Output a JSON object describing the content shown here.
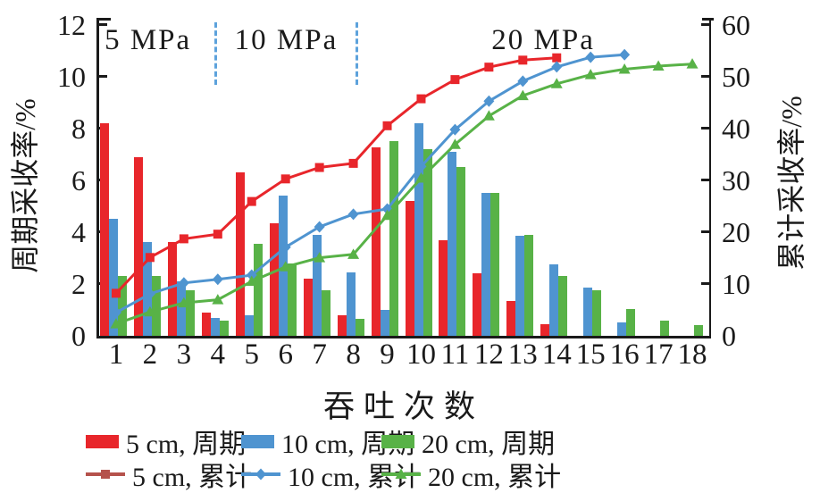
{
  "chart_data": {
    "type": "bar+line",
    "xlabel": "吞吐次数",
    "ylabel_left": "周期采收率/%",
    "ylabel_right": "累计采收率/%",
    "x_categories": [
      1,
      2,
      3,
      4,
      5,
      6,
      7,
      8,
      9,
      10,
      11,
      12,
      13,
      14,
      15,
      16,
      17,
      18
    ],
    "ylim_left": [
      0,
      12
    ],
    "yticks_left": [
      0,
      2,
      4,
      6,
      8,
      10,
      12
    ],
    "ylim_right": [
      0,
      60
    ],
    "yticks_right": [
      0,
      10,
      20,
      30,
      40,
      50,
      60
    ],
    "grid": false,
    "legend_position": "bottom",
    "pressure_stages": [
      {
        "label": "5 MPa",
        "label_center_cycle": 1.94
      },
      {
        "label": "10 MPa",
        "label_center_cycle": 6.02
      },
      {
        "label": "20 MPa",
        "label_center_cycle": 13.6
      }
    ],
    "stage_divider_cycles": [
      3.95,
      8.1
    ],
    "divider_color": "#5da2dc",
    "bar_series": [
      {
        "name": "5 cm, 周期",
        "color": "#e8262b",
        "values": [
          8.2,
          6.9,
          3.6,
          0.9,
          6.3,
          4.35,
          2.2,
          0.8,
          7.25,
          5.2,
          3.7,
          2.4,
          1.35,
          0.45
        ]
      },
      {
        "name": "10 cm, 周期",
        "color": "#4f94d0",
        "values": [
          4.5,
          3.6,
          2.1,
          0.7,
          0.8,
          5.4,
          3.9,
          2.45,
          1.0,
          8.2,
          7.1,
          5.5,
          3.85,
          2.75,
          1.85,
          0.5
        ]
      },
      {
        "name": "20 cm, 周期",
        "color": "#58b247",
        "values": [
          2.3,
          2.3,
          1.75,
          0.6,
          3.55,
          2.8,
          1.75,
          0.65,
          7.5,
          7.2,
          6.5,
          5.5,
          3.9,
          2.3,
          1.75,
          1.05,
          0.6,
          0.4
        ]
      }
    ],
    "line_series_right_axis": [
      {
        "name": "5 cm, 累计",
        "color": "#e8262b",
        "legend_color": "#b5524c",
        "marker": "square",
        "values": [
          8.2,
          15.1,
          18.7,
          19.6,
          25.9,
          30.25,
          32.45,
          33.25,
          40.5,
          45.7,
          49.4,
          51.8,
          53.15,
          53.6
        ]
      },
      {
        "name": "10 cm, 累计",
        "color": "#4f94d0",
        "legend_color": "#4f94d0",
        "marker": "diamond",
        "values": [
          4.5,
          8.1,
          10.2,
          10.9,
          11.7,
          17.1,
          21.0,
          23.45,
          24.45,
          32.65,
          39.75,
          45.25,
          49.1,
          51.85,
          53.7,
          54.2
        ]
      },
      {
        "name": "20 cm, 累计",
        "color": "#58b247",
        "legend_color": "#58b247",
        "marker": "triangle",
        "values": [
          2.3,
          4.6,
          6.35,
          6.95,
          10.5,
          13.3,
          15.05,
          15.7,
          23.2,
          30.4,
          36.9,
          42.4,
          46.3,
          48.6,
          50.35,
          51.4,
          52.0,
          52.4
        ]
      }
    ]
  }
}
